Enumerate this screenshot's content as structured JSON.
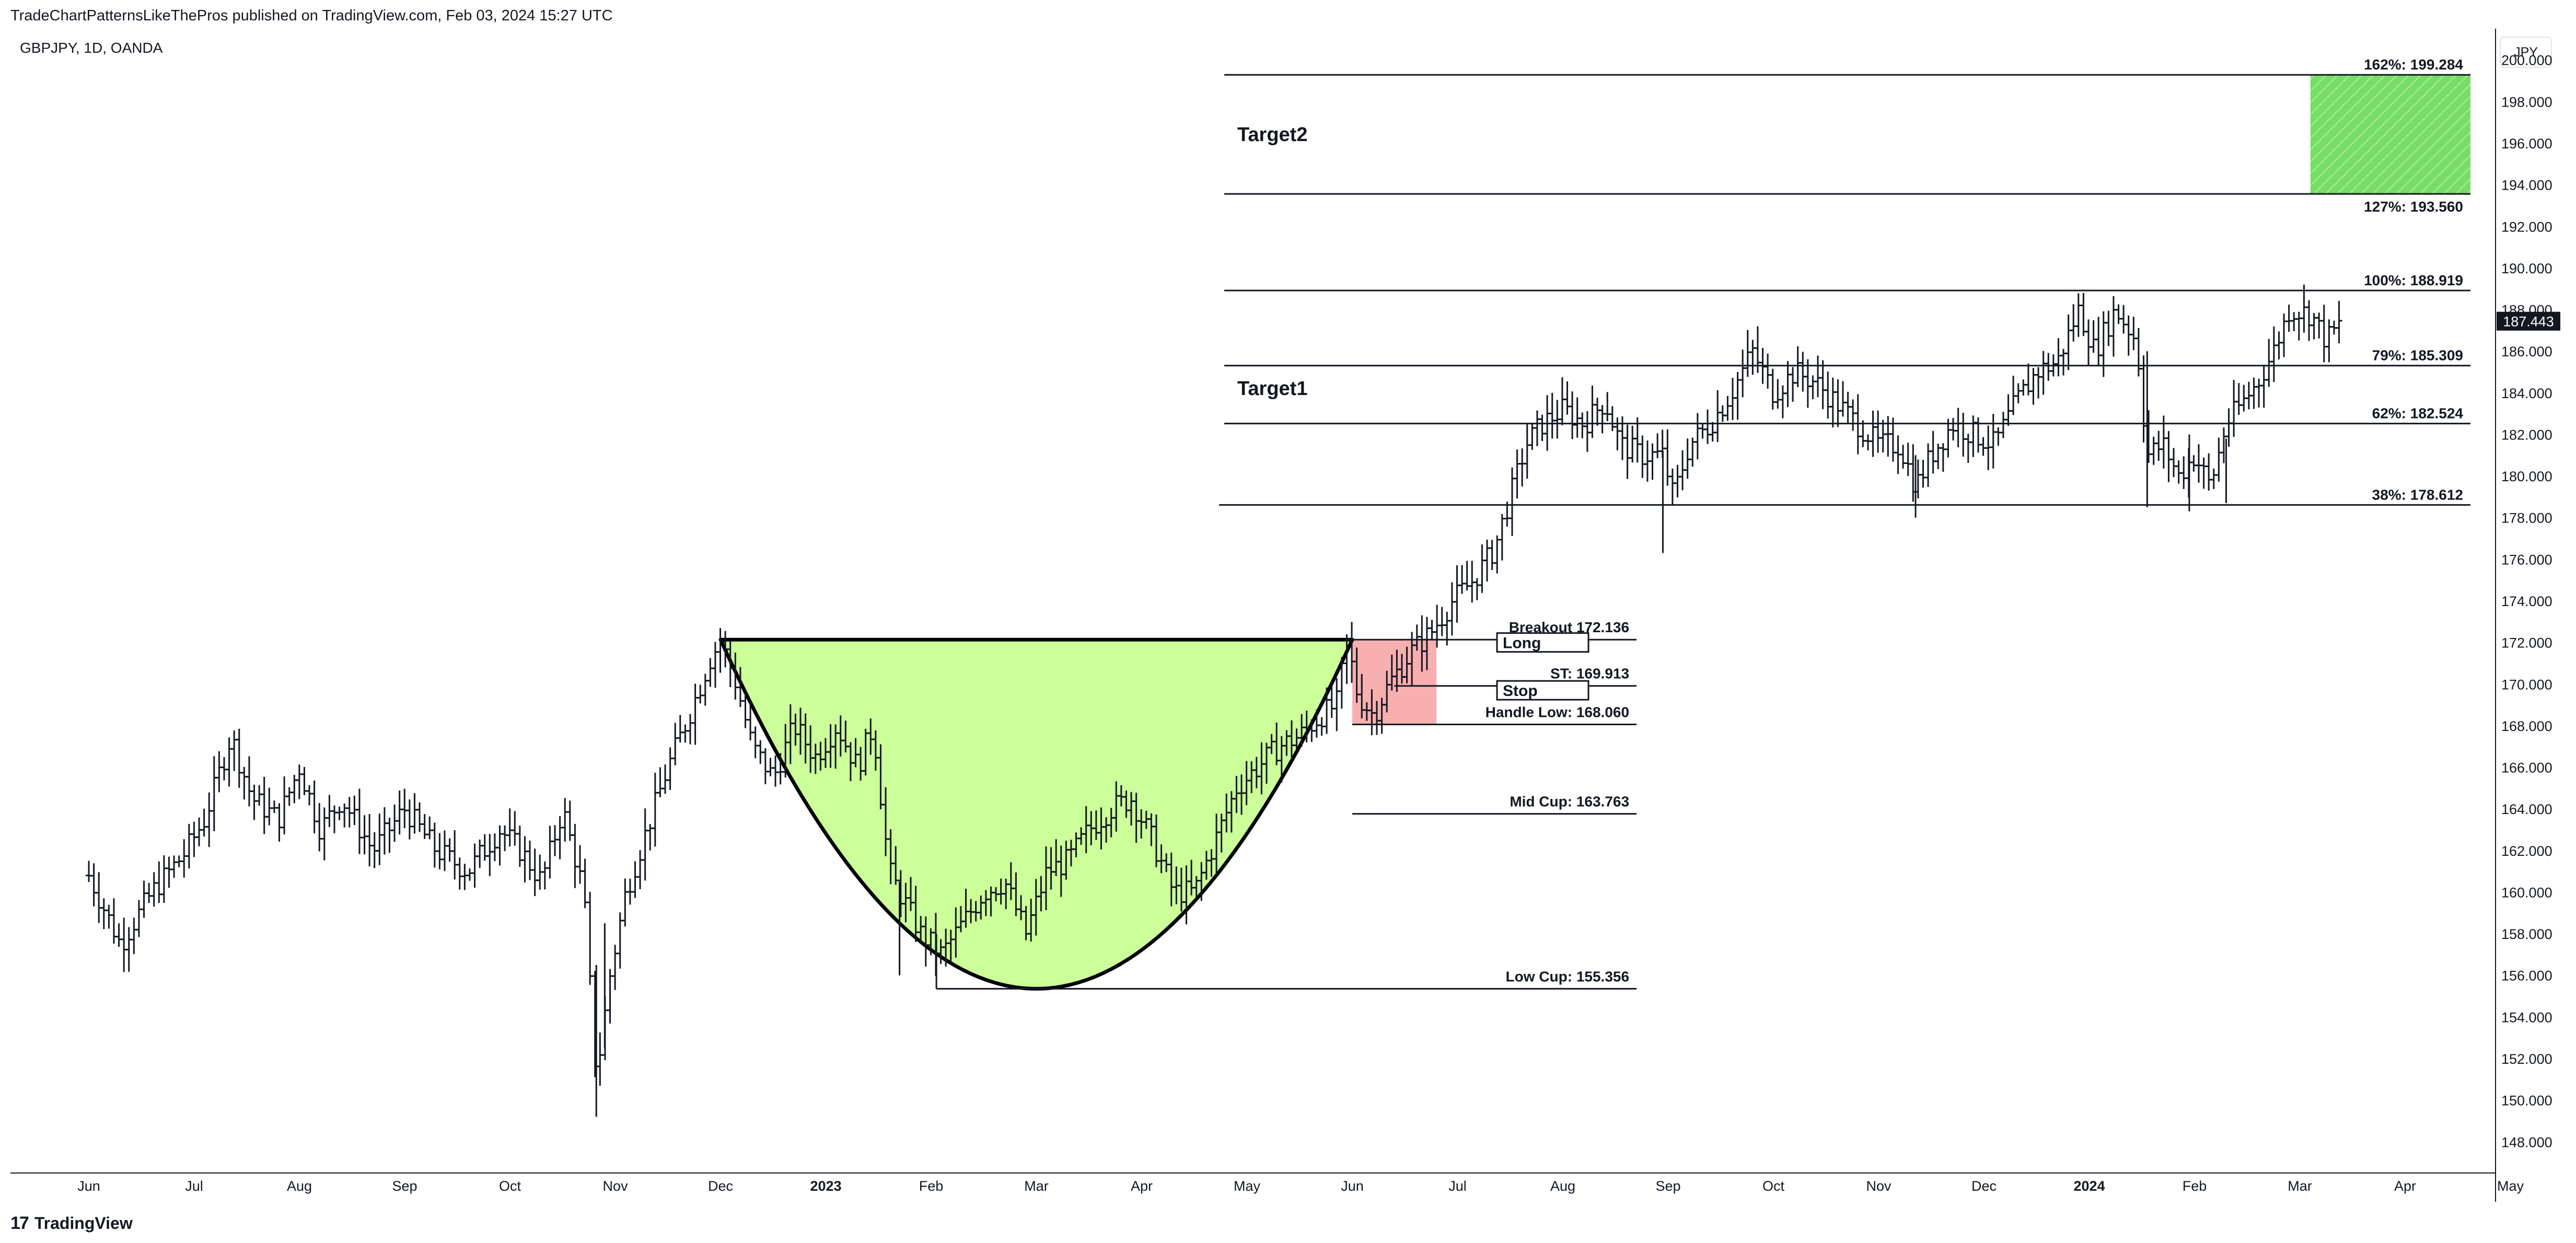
{
  "header": {
    "published": "TradeChartPatternsLikeThePros published on TradingView.com, Feb 03, 2024 15:27 UTC",
    "symbol": "GBPJPY, 1D, OANDA"
  },
  "currency_label": "JPY",
  "footer": {
    "logo_mark": "17",
    "logo_text": "TradingView"
  },
  "colors": {
    "cup_fill": "#ccff99",
    "stop_zone": "#f7a6a6",
    "target_zone": "#77dd66",
    "bar": "#131722",
    "price_tag_bg": "#131722"
  },
  "chart_data": {
    "type": "line",
    "instrument": "GBPJPY",
    "timeframe": "1D",
    "ylim": [
      146.5,
      201.5
    ],
    "x_ticks": [
      "Jun",
      "Jul",
      "Aug",
      "Sep",
      "Oct",
      "Nov",
      "Dec",
      "2023",
      "Feb",
      "Mar",
      "Apr",
      "May",
      "Jun",
      "Jul",
      "Aug",
      "Sep",
      "Oct",
      "Nov",
      "Dec",
      "2024",
      "Feb",
      "Mar",
      "Apr",
      "May"
    ],
    "x_ticks_bold": [
      "2023",
      "2024"
    ],
    "y_ticks": [
      "148.000",
      "150.000",
      "152.000",
      "154.000",
      "156.000",
      "158.000",
      "160.000",
      "162.000",
      "164.000",
      "166.000",
      "168.000",
      "170.000",
      "172.000",
      "174.000",
      "176.000",
      "178.000",
      "180.000",
      "182.000",
      "184.000",
      "186.000",
      "188.000",
      "190.000",
      "192.000",
      "194.000",
      "196.000",
      "198.000",
      "200.000"
    ],
    "last_price": "187.443",
    "series": [
      {
        "values": [
          {
            "m": 0.0,
            "p": 160.8
          },
          {
            "m": 0.3,
            "p": 157.5
          },
          {
            "m": 0.6,
            "p": 160.0
          },
          {
            "m": 0.9,
            "p": 161.8
          },
          {
            "m": 1.1,
            "p": 163.5
          },
          {
            "m": 1.35,
            "p": 167.5
          },
          {
            "m": 1.55,
            "p": 164.5
          },
          {
            "m": 1.8,
            "p": 163.5
          },
          {
            "m": 2.0,
            "p": 166.0
          },
          {
            "m": 2.2,
            "p": 163.0
          },
          {
            "m": 2.4,
            "p": 164.5
          },
          {
            "m": 2.7,
            "p": 162.0
          },
          {
            "m": 3.0,
            "p": 164.0
          },
          {
            "m": 3.3,
            "p": 162.0
          },
          {
            "m": 3.6,
            "p": 161.0
          },
          {
            "m": 3.9,
            "p": 163.0
          },
          {
            "m": 4.1,
            "p": 162.0
          },
          {
            "m": 4.3,
            "p": 160.5
          },
          {
            "m": 4.5,
            "p": 164.0
          },
          {
            "m": 4.7,
            "p": 160.0
          },
          {
            "m": 4.82,
            "p": 151.0
          },
          {
            "m": 4.95,
            "p": 156.0
          },
          {
            "m": 5.1,
            "p": 160.0
          },
          {
            "m": 5.3,
            "p": 163.0
          },
          {
            "m": 5.5,
            "p": 166.0
          },
          {
            "m": 5.7,
            "p": 168.5
          },
          {
            "m": 5.9,
            "p": 171.2
          },
          {
            "m": 6.0,
            "p": 172.1
          },
          {
            "m": 6.15,
            "p": 170.0
          },
          {
            "m": 6.3,
            "p": 167.0
          },
          {
            "m": 6.5,
            "p": 165.5
          },
          {
            "m": 6.7,
            "p": 168.0
          },
          {
            "m": 6.9,
            "p": 166.5
          },
          {
            "m": 7.1,
            "p": 168.0
          },
          {
            "m": 7.3,
            "p": 166.0
          },
          {
            "m": 7.45,
            "p": 168.0
          },
          {
            "m": 7.6,
            "p": 161.0
          },
          {
            "m": 7.75,
            "p": 159.5
          },
          {
            "m": 7.9,
            "p": 158.0
          },
          {
            "m": 8.1,
            "p": 157.0
          },
          {
            "m": 8.3,
            "p": 158.5
          },
          {
            "m": 8.5,
            "p": 160.0
          },
          {
            "m": 8.7,
            "p": 160.5
          },
          {
            "m": 8.9,
            "p": 158.0
          },
          {
            "m": 9.1,
            "p": 161.0
          },
          {
            "m": 9.3,
            "p": 161.5
          },
          {
            "m": 9.5,
            "p": 163.0
          },
          {
            "m": 9.7,
            "p": 164.0
          },
          {
            "m": 9.9,
            "p": 164.5
          },
          {
            "m": 10.1,
            "p": 162.5
          },
          {
            "m": 10.3,
            "p": 160.0
          },
          {
            "m": 10.5,
            "p": 160.0
          },
          {
            "m": 10.7,
            "p": 162.5
          },
          {
            "m": 10.9,
            "p": 165.0
          },
          {
            "m": 11.1,
            "p": 166.0
          },
          {
            "m": 11.3,
            "p": 167.0
          },
          {
            "m": 11.5,
            "p": 167.5
          },
          {
            "m": 11.7,
            "p": 168.5
          },
          {
            "m": 11.85,
            "p": 169.0
          },
          {
            "m": 11.95,
            "p": 172.0
          },
          {
            "m": 12.05,
            "p": 169.5
          },
          {
            "m": 12.2,
            "p": 168.5
          },
          {
            "m": 12.35,
            "p": 170.0
          },
          {
            "m": 12.55,
            "p": 171.5
          },
          {
            "m": 12.75,
            "p": 172.5
          },
          {
            "m": 12.95,
            "p": 174.0
          },
          {
            "m": 13.15,
            "p": 175.0
          },
          {
            "m": 13.35,
            "p": 176.5
          },
          {
            "m": 13.5,
            "p": 179.0
          },
          {
            "m": 13.65,
            "p": 181.5
          },
          {
            "m": 13.8,
            "p": 182.5
          },
          {
            "m": 14.0,
            "p": 183.2
          },
          {
            "m": 14.2,
            "p": 182.5
          },
          {
            "m": 14.4,
            "p": 183.6
          },
          {
            "m": 14.55,
            "p": 181.5
          },
          {
            "m": 14.75,
            "p": 181.0
          },
          {
            "m": 14.95,
            "p": 181.0
          },
          {
            "m": 15.05,
            "p": 179.0
          },
          {
            "m": 15.2,
            "p": 181.5
          },
          {
            "m": 15.4,
            "p": 182.5
          },
          {
            "m": 15.6,
            "p": 184.0
          },
          {
            "m": 15.8,
            "p": 186.0
          },
          {
            "m": 16.0,
            "p": 184.0
          },
          {
            "m": 16.2,
            "p": 185.0
          },
          {
            "m": 16.4,
            "p": 184.5
          },
          {
            "m": 16.6,
            "p": 183.5
          },
          {
            "m": 16.8,
            "p": 182.5
          },
          {
            "m": 17.0,
            "p": 181.5
          },
          {
            "m": 17.2,
            "p": 181.5
          },
          {
            "m": 17.35,
            "p": 179.5
          },
          {
            "m": 17.5,
            "p": 181.0
          },
          {
            "m": 17.7,
            "p": 182.5
          },
          {
            "m": 17.9,
            "p": 182.0
          },
          {
            "m": 18.1,
            "p": 181.5
          },
          {
            "m": 18.3,
            "p": 183.5
          },
          {
            "m": 18.5,
            "p": 185.0
          },
          {
            "m": 18.7,
            "p": 185.5
          },
          {
            "m": 18.9,
            "p": 188.0
          },
          {
            "m": 19.05,
            "p": 186.0
          },
          {
            "m": 19.25,
            "p": 188.0
          },
          {
            "m": 19.45,
            "p": 186.5
          },
          {
            "m": 19.55,
            "p": 181.0
          },
          {
            "m": 19.7,
            "p": 181.5
          },
          {
            "m": 19.85,
            "p": 180.0
          },
          {
            "m": 20.0,
            "p": 181.0
          },
          {
            "m": 20.15,
            "p": 179.5
          },
          {
            "m": 20.3,
            "p": 182.5
          },
          {
            "m": 20.45,
            "p": 183.5
          },
          {
            "m": 20.6,
            "p": 184.5
          },
          {
            "m": 20.75,
            "p": 186.0
          },
          {
            "m": 20.9,
            "p": 188.0
          },
          {
            "m": 21.1,
            "p": 187.8
          },
          {
            "m": 21.25,
            "p": 186.5
          },
          {
            "m": 21.4,
            "p": 187.4
          }
        ]
      }
    ],
    "annotations": {
      "cup": {
        "left": {
          "m": 6.0,
          "p": 172.136
        },
        "right": {
          "m": 12.0,
          "p": 172.136
        },
        "bottom": {
          "m": 9.0,
          "p": 155.356
        }
      },
      "levels": [
        {
          "label": "Breakout 172.136",
          "price": 172.136,
          "m_start": 12.0,
          "m_end": 14.7
        },
        {
          "label": "ST: 169.913",
          "price": 169.913,
          "m_start": 12.4,
          "m_end": 14.7
        },
        {
          "label": "Handle Low: 168.060",
          "price": 168.06,
          "m_start": 12.0,
          "m_end": 14.7
        },
        {
          "label": "Mid Cup: 163.763",
          "price": 163.763,
          "m_start": 12.0,
          "m_end": 14.7
        },
        {
          "label": "Low Cup: 155.356",
          "price": 155.356,
          "m_start": 8.05,
          "m_end": 14.7
        }
      ],
      "fib_levels": [
        {
          "label": "162%: 199.284",
          "price": 199.284,
          "label_pos": "above"
        },
        {
          "label": "127%: 193.560",
          "price": 193.56,
          "label_pos": "below"
        },
        {
          "label": "100%: 188.919",
          "price": 188.919,
          "label_pos": "above"
        },
        {
          "label": "79%: 185.309",
          "price": 185.309,
          "label_pos": "above"
        },
        {
          "label": "62%: 182.524",
          "price": 182.524,
          "label_pos": "above"
        },
        {
          "label": "38%: 178.612",
          "price": 178.612,
          "label_pos": "above"
        }
      ],
      "boxes": [
        {
          "label": "Long",
          "price": 172.0
        },
        {
          "label": "Stop",
          "price": 169.7
        }
      ],
      "targets": [
        {
          "label": "Target2",
          "price": 196.4
        },
        {
          "label": "Target1",
          "price": 184.2
        }
      ],
      "stop_zone": {
        "m_start": 12.0,
        "m_end": 12.8,
        "p_top": 172.1,
        "p_bottom": 168.1
      },
      "target_zone": {
        "m_start": 21.1,
        "m_end": 24.1,
        "p_top": 199.284,
        "p_bottom": 193.56
      }
    }
  }
}
